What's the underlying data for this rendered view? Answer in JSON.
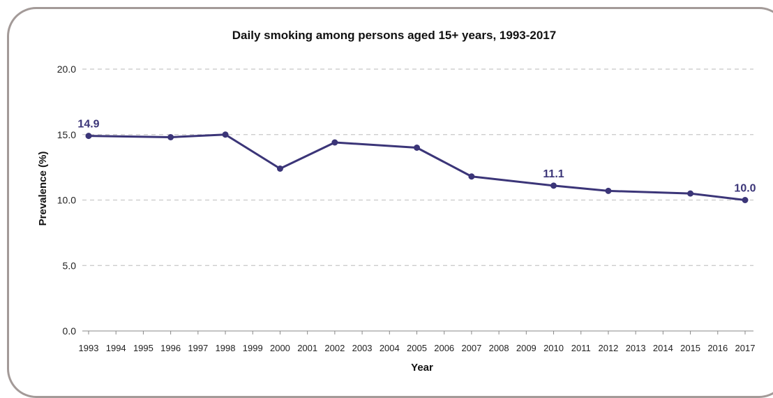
{
  "chart_data": {
    "type": "line",
    "title": "Daily smoking among persons aged 15+ years, 1993-2017",
    "xlabel": "Year",
    "ylabel": "Prevalence (%)",
    "ylim": [
      0,
      20
    ],
    "y_ticks": [
      "0.0",
      "5.0",
      "10.0",
      "15.0",
      "20.0"
    ],
    "x_ticks": [
      "1993",
      "1994",
      "1995",
      "1996",
      "1997",
      "1998",
      "1999",
      "2000",
      "2001",
      "2002",
      "2003",
      "2004",
      "2005",
      "2006",
      "2007",
      "2008",
      "2009",
      "2010",
      "2011",
      "2012",
      "2013",
      "2014",
      "2015",
      "2016",
      "2017"
    ],
    "grid": "horizontal dashed",
    "series": [
      {
        "color": "#3b3578",
        "x": [
          1993,
          1996,
          1998,
          2000,
          2002,
          2005,
          2007,
          2010,
          2012,
          2015,
          2017
        ],
        "values": [
          14.9,
          14.8,
          15.0,
          12.4,
          14.4,
          14.0,
          11.8,
          11.1,
          10.7,
          10.5,
          10.0
        ]
      }
    ],
    "data_labels": [
      {
        "x": 1993,
        "text": "14.9"
      },
      {
        "x": 2010,
        "text": "11.1"
      },
      {
        "x": 2017,
        "text": "10.0"
      }
    ],
    "colors": {
      "line": "#3b3578",
      "label": "#3b3578",
      "grid": "#c8c8c8",
      "frame": "#a39a98"
    }
  }
}
